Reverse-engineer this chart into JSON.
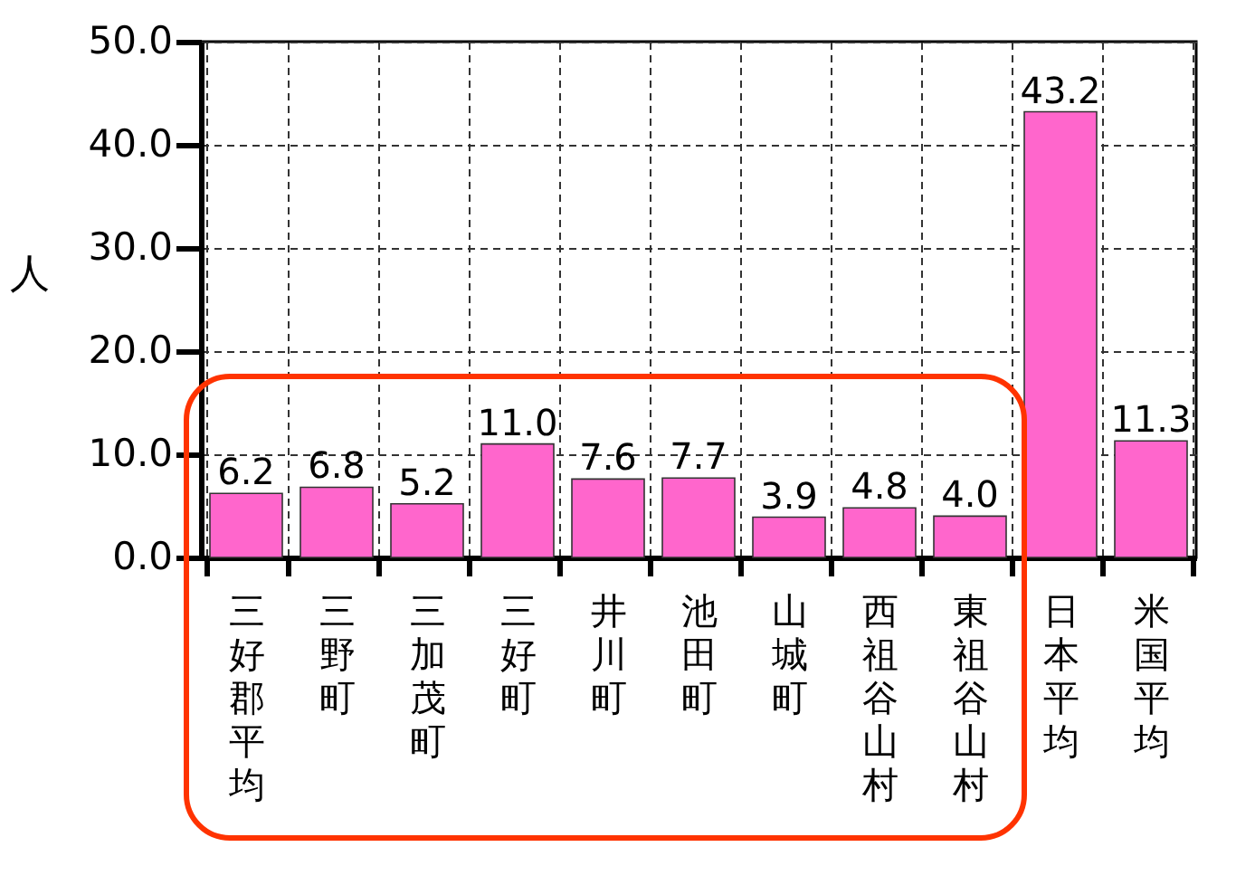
{
  "chart_data": {
    "type": "bar",
    "ylabel": "人",
    "categories": [
      "三好郡平均",
      "三野町",
      "三加茂町",
      "三好町",
      "井川町",
      "池田町",
      "山城町",
      "西祖谷山村",
      "東祖谷山村",
      "日本平均",
      "米国平均"
    ],
    "values": [
      6.2,
      6.8,
      5.2,
      11.0,
      7.6,
      7.7,
      3.9,
      4.8,
      4.0,
      43.2,
      11.3
    ],
    "value_labels": [
      "6.2",
      "6.8",
      "5.2",
      "11.0",
      "7.6",
      "7.7",
      "3.9",
      "4.8",
      "4.0",
      "43.2",
      "11.3"
    ],
    "color": "#ff66cc",
    "ylim": [
      0,
      50
    ],
    "yticks": [
      {
        "value": 0,
        "label": "0.0"
      },
      {
        "value": 10,
        "label": "10.0"
      },
      {
        "value": 20,
        "label": "20.0"
      },
      {
        "value": 30,
        "label": "30.0"
      },
      {
        "value": 40,
        "label": "40.0"
      },
      {
        "value": 50,
        "label": "50.0"
      }
    ],
    "grid": true
  }
}
